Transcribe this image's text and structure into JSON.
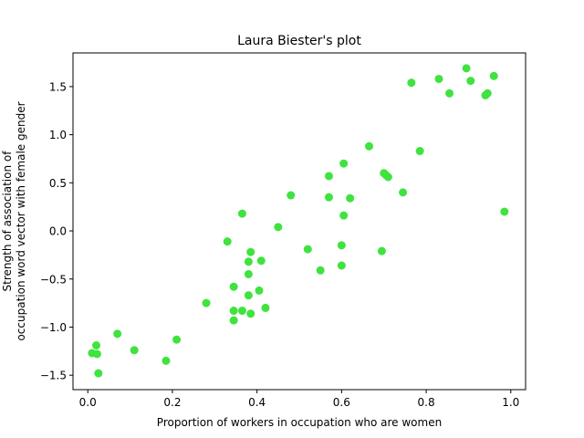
{
  "chart_data": {
    "type": "scatter",
    "title": "Laura Biester's plot",
    "xlabel": "Proportion of workers in occupation who are women",
    "ylabel_lines": [
      "Strength of association of",
      "occupation word vector with female gender"
    ],
    "xlim": [
      -0.035,
      1.035
    ],
    "ylim": [
      -1.65,
      1.85
    ],
    "xticks": [
      0.0,
      0.2,
      0.4,
      0.6,
      0.8,
      1.0
    ],
    "xtick_labels": [
      "0.0",
      "0.2",
      "0.4",
      "0.6",
      "0.8",
      "1.0"
    ],
    "yticks": [
      -1.5,
      -1.0,
      -0.5,
      0.0,
      0.5,
      1.0,
      1.5
    ],
    "ytick_labels": [
      "−1.5",
      "−1.0",
      "−0.5",
      "0.0",
      "0.5",
      "1.0",
      "1.5"
    ],
    "grid": false,
    "marker_color": "#3fe33f",
    "points": [
      {
        "x": 0.01,
        "y": -1.27
      },
      {
        "x": 0.02,
        "y": -1.19
      },
      {
        "x": 0.022,
        "y": -1.28
      },
      {
        "x": 0.025,
        "y": -1.48
      },
      {
        "x": 0.07,
        "y": -1.07
      },
      {
        "x": 0.11,
        "y": -1.24
      },
      {
        "x": 0.185,
        "y": -1.35
      },
      {
        "x": 0.21,
        "y": -1.13
      },
      {
        "x": 0.28,
        "y": -0.75
      },
      {
        "x": 0.33,
        "y": -0.11
      },
      {
        "x": 0.345,
        "y": -0.58
      },
      {
        "x": 0.345,
        "y": -0.83
      },
      {
        "x": 0.345,
        "y": -0.93
      },
      {
        "x": 0.365,
        "y": 0.18
      },
      {
        "x": 0.365,
        "y": -0.83
      },
      {
        "x": 0.38,
        "y": -0.32
      },
      {
        "x": 0.38,
        "y": -0.45
      },
      {
        "x": 0.38,
        "y": -0.67
      },
      {
        "x": 0.385,
        "y": -0.22
      },
      {
        "x": 0.385,
        "y": -0.86
      },
      {
        "x": 0.405,
        "y": -0.62
      },
      {
        "x": 0.41,
        "y": -0.31
      },
      {
        "x": 0.42,
        "y": -0.8
      },
      {
        "x": 0.45,
        "y": 0.04
      },
      {
        "x": 0.48,
        "y": 0.37
      },
      {
        "x": 0.52,
        "y": -0.19
      },
      {
        "x": 0.55,
        "y": -0.41
      },
      {
        "x": 0.57,
        "y": 0.57
      },
      {
        "x": 0.57,
        "y": 0.35
      },
      {
        "x": 0.6,
        "y": -0.15
      },
      {
        "x": 0.6,
        "y": -0.36
      },
      {
        "x": 0.605,
        "y": 0.7
      },
      {
        "x": 0.605,
        "y": 0.16
      },
      {
        "x": 0.62,
        "y": 0.34
      },
      {
        "x": 0.665,
        "y": 0.88
      },
      {
        "x": 0.695,
        "y": -0.21
      },
      {
        "x": 0.7,
        "y": 0.6
      },
      {
        "x": 0.705,
        "y": 0.58
      },
      {
        "x": 0.71,
        "y": 0.56
      },
      {
        "x": 0.745,
        "y": 0.4
      },
      {
        "x": 0.765,
        "y": 1.54
      },
      {
        "x": 0.785,
        "y": 0.83
      },
      {
        "x": 0.83,
        "y": 1.58
      },
      {
        "x": 0.855,
        "y": 1.43
      },
      {
        "x": 0.895,
        "y": 1.69
      },
      {
        "x": 0.905,
        "y": 1.56
      },
      {
        "x": 0.94,
        "y": 1.41
      },
      {
        "x": 0.945,
        "y": 1.43
      },
      {
        "x": 0.96,
        "y": 1.61
      },
      {
        "x": 0.985,
        "y": 0.2
      }
    ]
  }
}
